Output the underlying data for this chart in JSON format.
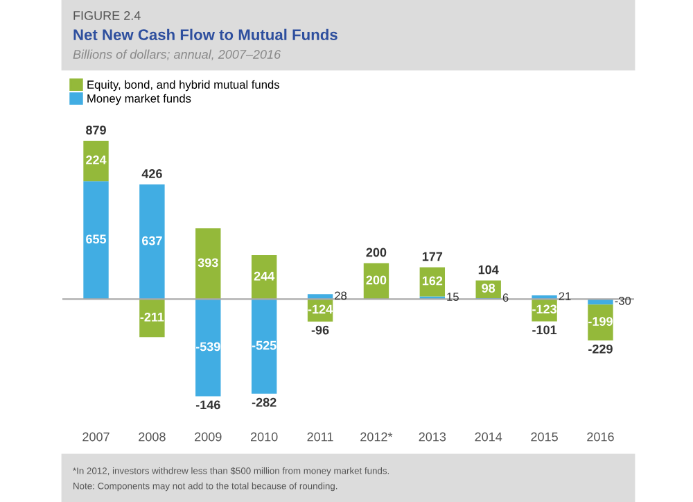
{
  "chart_data": {
    "type": "bar",
    "title": "Net New Cash Flow to Mutual Funds",
    "subtitle": "Billions of dollars; annual, 2007–2016",
    "categories": [
      "2007",
      "2008",
      "2009",
      "2010",
      "2011",
      "2012*",
      "2013",
      "2014",
      "2015",
      "2016"
    ],
    "stacked": true,
    "legend": "top left",
    "tick_labels": "x",
    "series": [
      {
        "name": "Money market funds",
        "color": "#41ade3",
        "values": [
          655,
          637,
          -539,
          -525,
          28,
          0,
          15,
          6,
          21,
          -30
        ],
        "value_labels": [
          "655",
          "637",
          "-539",
          "-525",
          "28",
          null,
          "15",
          "6",
          "21",
          "-30"
        ]
      },
      {
        "name": "Equity, bond, and hybrid mutual funds",
        "color": "#94b93a",
        "values": [
          224,
          -211,
          393,
          244,
          -124,
          200,
          162,
          98,
          -123,
          -199
        ],
        "value_labels": [
          "224",
          "-211",
          "393",
          "244",
          "-124",
          "200",
          "162",
          "98",
          "-123",
          "-199"
        ]
      }
    ],
    "totals": [
      "879",
      "426",
      "-146",
      "-282",
      "-96",
      "200",
      "177",
      "104",
      "-101",
      "-229"
    ],
    "annotations": [
      "FIGURE 2.4",
      "*In 2012, investors withdrew less than $500 million from money market funds.",
      "Note: Components may not add to the total because of rounding."
    ]
  }
}
